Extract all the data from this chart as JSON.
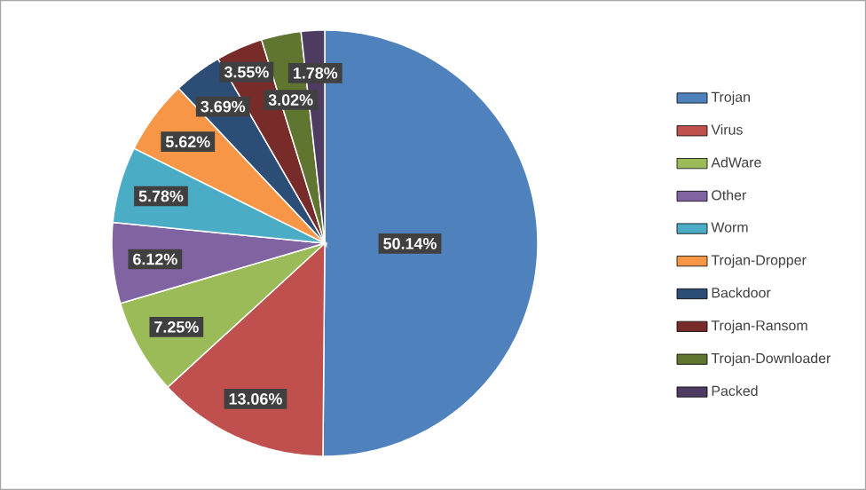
{
  "chart_data": {
    "type": "pie",
    "categories": [
      "Trojan",
      "Virus",
      "AdWare",
      "Other",
      "Worm",
      "Trojan-Dropper",
      "Backdoor",
      "Trojan-Ransom",
      "Trojan-Downloader",
      "Packed"
    ],
    "values": [
      50.14,
      13.06,
      7.25,
      6.12,
      5.78,
      5.62,
      3.69,
      3.55,
      3.02,
      1.78
    ],
    "value_labels": [
      "50.14%",
      "13.06%",
      "7.25%",
      "6.12%",
      "5.78%",
      "5.62%",
      "3.69%",
      "3.55%",
      "3.02%",
      "1.78%"
    ],
    "colors": [
      "#4f81bd",
      "#c0504d",
      "#9bbb59",
      "#8064a2",
      "#4bacc6",
      "#f79646",
      "#2c4d75",
      "#772c2a",
      "#5f7530",
      "#4d3b62"
    ],
    "legend": "right"
  }
}
